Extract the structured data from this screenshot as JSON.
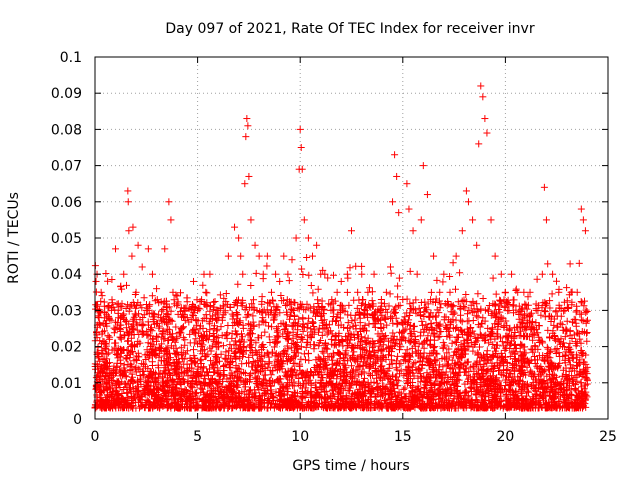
{
  "chart_data": {
    "type": "scatter",
    "title": "Day 097 of 2021, Rate Of TEC Index for receiver invr",
    "xlabel": "GPS time / hours",
    "ylabel": "ROTI / TECUs",
    "xlim": [
      0,
      25
    ],
    "ylim": [
      0,
      0.1
    ],
    "grid": true,
    "marker": "+",
    "x_ticks": [
      0,
      5,
      10,
      15,
      20,
      25
    ],
    "x_tick_labels": [
      "0",
      "5",
      "10",
      "15",
      "20",
      "25"
    ],
    "y_ticks": [
      0,
      0.01,
      0.02,
      0.03,
      0.04,
      0.05,
      0.06,
      0.07,
      0.08,
      0.09,
      0.1
    ],
    "y_tick_labels": [
      "0",
      "0.01",
      "0.02",
      "0.03",
      "0.04",
      "0.05",
      "0.06",
      "0.07",
      "0.08",
      "0.09",
      "0.1"
    ],
    "series": [
      {
        "name": "ROTI",
        "color": "#ff0000",
        "x": [
          0.05,
          0.1,
          0.15,
          0.2,
          0.3,
          0.5,
          0.7,
          0.8,
          1.0,
          1.2,
          1.4,
          1.6,
          1.62,
          1.65,
          1.8,
          1.85,
          2.0,
          2.1,
          2.3,
          2.5,
          2.6,
          2.8,
          3.0,
          3.2,
          3.4,
          3.6,
          3.7,
          3.8,
          4.0,
          4.2,
          4.5,
          4.8,
          5.0,
          5.2,
          5.4,
          5.6,
          5.8,
          6.0,
          6.2,
          6.5,
          6.8,
          7.0,
          7.1,
          7.2,
          7.3,
          7.35,
          7.4,
          7.45,
          7.5,
          7.6,
          7.8,
          8.0,
          8.2,
          8.4,
          8.6,
          8.8,
          9.0,
          9.2,
          9.4,
          9.6,
          9.8,
          9.95,
          10.0,
          10.05,
          10.1,
          10.2,
          10.4,
          10.6,
          10.8,
          11.0,
          11.2,
          11.5,
          11.8,
          12.0,
          12.3,
          12.5,
          12.8,
          13.0,
          13.3,
          13.6,
          13.9,
          14.2,
          14.4,
          14.5,
          14.6,
          14.7,
          14.8,
          15.0,
          15.2,
          15.3,
          15.5,
          15.7,
          15.9,
          16.0,
          16.2,
          16.5,
          16.8,
          17.0,
          17.3,
          17.6,
          17.9,
          18.1,
          18.2,
          18.4,
          18.6,
          18.7,
          18.8,
          18.9,
          19.0,
          19.1,
          19.3,
          19.5,
          19.8,
          20.0,
          20.3,
          20.6,
          20.9,
          21.2,
          21.5,
          21.8,
          21.9,
          22.0,
          22.3,
          22.6,
          22.9,
          23.2,
          23.5,
          23.6,
          23.7,
          23.8,
          23.9
        ],
        "y": [
          0.038,
          0.04,
          0.018,
          0.028,
          0.035,
          0.012,
          0.022,
          0.03,
          0.047,
          0.025,
          0.04,
          0.063,
          0.06,
          0.052,
          0.045,
          0.053,
          0.035,
          0.048,
          0.042,
          0.03,
          0.047,
          0.04,
          0.036,
          0.028,
          0.047,
          0.06,
          0.055,
          0.035,
          0.034,
          0.025,
          0.028,
          0.038,
          0.03,
          0.02,
          0.035,
          0.04,
          0.025,
          0.03,
          0.028,
          0.045,
          0.053,
          0.05,
          0.045,
          0.04,
          0.065,
          0.078,
          0.083,
          0.081,
          0.067,
          0.055,
          0.048,
          0.045,
          0.04,
          0.045,
          0.035,
          0.04,
          0.038,
          0.045,
          0.04,
          0.044,
          0.05,
          0.069,
          0.08,
          0.075,
          0.069,
          0.055,
          0.05,
          0.045,
          0.048,
          0.04,
          0.04,
          0.03,
          0.035,
          0.038,
          0.04,
          0.052,
          0.035,
          0.04,
          0.035,
          0.04,
          0.03,
          0.035,
          0.042,
          0.06,
          0.073,
          0.067,
          0.057,
          0.033,
          0.065,
          0.058,
          0.052,
          0.04,
          0.055,
          0.07,
          0.062,
          0.045,
          0.035,
          0.04,
          0.035,
          0.045,
          0.052,
          0.063,
          0.06,
          0.055,
          0.048,
          0.076,
          0.092,
          0.089,
          0.083,
          0.079,
          0.055,
          0.045,
          0.04,
          0.035,
          0.04,
          0.035,
          0.035,
          0.035,
          0.03,
          0.04,
          0.064,
          0.055,
          0.04,
          0.035,
          0.03,
          0.035,
          0.035,
          0.043,
          0.058,
          0.055,
          0.052
        ]
      }
    ]
  }
}
